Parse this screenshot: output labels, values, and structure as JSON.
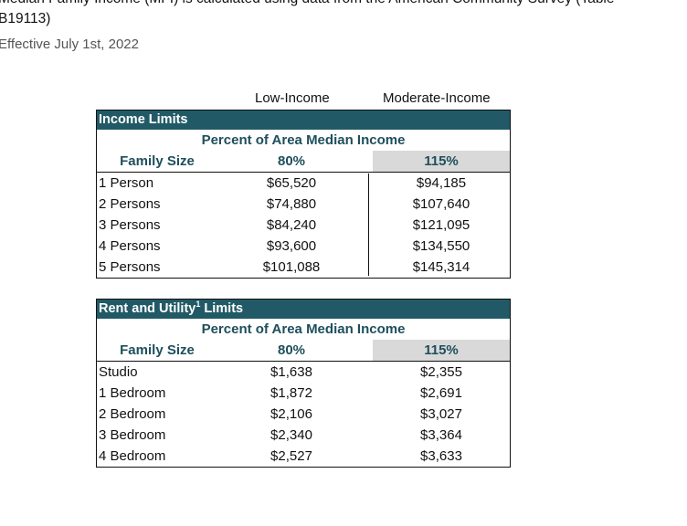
{
  "intro": {
    "line1": "Median Family Income (MFI) is calculated using data from the American Community Survey (Table",
    "line2": "B19113)",
    "effective": "Effective July 1st, 2022"
  },
  "column_headers": {
    "low": "Low-Income",
    "moderate": "Moderate-Income"
  },
  "income_limits": {
    "title": "Income Limits",
    "subhead": "Percent of Area Median Income",
    "headers": [
      "Family Size",
      "80%",
      "115%"
    ],
    "rows": [
      [
        "1 Person",
        "$65,520",
        "$94,185"
      ],
      [
        "2 Persons",
        "$74,880",
        "$107,640"
      ],
      [
        "3 Persons",
        "$84,240",
        "$121,095"
      ],
      [
        "4 Persons",
        "$93,600",
        "$134,550"
      ],
      [
        "5 Persons",
        "$101,088",
        "$145,314"
      ]
    ]
  },
  "rent_limits": {
    "title": "Rent and Utility",
    "title_sup": "1",
    "title_suffix": " Limits",
    "subhead": "Percent of Area Median Income",
    "headers": [
      "Family Size",
      "80%",
      "115%"
    ],
    "rows": [
      [
        "Studio",
        "$1,638",
        "$2,355"
      ],
      [
        "1 Bedroom",
        "$1,872",
        "$2,691"
      ],
      [
        "2 Bedroom",
        "$2,106",
        "$3,027"
      ],
      [
        "3 Bedroom",
        "$2,340",
        "$3,364"
      ],
      [
        "4 Bedroom",
        "$2,527",
        "$3,633"
      ]
    ]
  }
}
